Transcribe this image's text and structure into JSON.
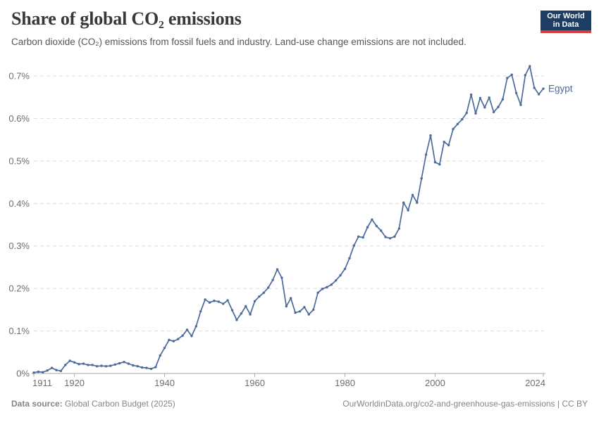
{
  "header": {
    "title": "Share of global CO₂ emissions",
    "subtitle": "Carbon dioxide (CO₂) emissions from fossil fuels and industry. Land-use change emissions are not included."
  },
  "logo": {
    "line1": "Our World",
    "line2": "in Data",
    "bg_color": "#1d3d63",
    "accent_color": "#d73c3c"
  },
  "footer": {
    "source_label": "Data source:",
    "source_value": " Global Carbon Budget (2025)",
    "citation": "OurWorldinData.org/co2-and-greenhouse-gas-emissions | CC BY"
  },
  "chart_data": {
    "type": "line",
    "title": "Share of global CO₂ emissions",
    "entity_label": "Egypt",
    "unit": "%",
    "line_color": "#4c6a9c",
    "grid": "horizontal-dashed",
    "legend": "inline-end-label",
    "ylim": [
      0,
      0.75
    ],
    "yticks": [
      0,
      0.1,
      0.2,
      0.3,
      0.4,
      0.5,
      0.6,
      0.7
    ],
    "ytick_labels": [
      "0%",
      "0.1%",
      "0.2%",
      "0.3%",
      "0.4%",
      "0.5%",
      "0.6%",
      "0.7%"
    ],
    "xticks": [
      1911,
      1920,
      1940,
      1960,
      1980,
      2000,
      2024
    ],
    "x_start": 1911,
    "x_end": 2024,
    "x_step": 1,
    "values": [
      0.002,
      0.004,
      0.003,
      0.007,
      0.013,
      0.008,
      0.006,
      0.02,
      0.03,
      0.026,
      0.022,
      0.023,
      0.02,
      0.02,
      0.017,
      0.018,
      0.017,
      0.018,
      0.021,
      0.024,
      0.027,
      0.023,
      0.019,
      0.017,
      0.014,
      0.013,
      0.011,
      0.015,
      0.042,
      0.06,
      0.079,
      0.076,
      0.081,
      0.089,
      0.103,
      0.088,
      0.111,
      0.146,
      0.174,
      0.167,
      0.171,
      0.169,
      0.164,
      0.172,
      0.149,
      0.126,
      0.141,
      0.158,
      0.139,
      0.17,
      0.181,
      0.19,
      0.202,
      0.22,
      0.245,
      0.225,
      0.158,
      0.177,
      0.143,
      0.146,
      0.156,
      0.139,
      0.15,
      0.19,
      0.199,
      0.203,
      0.209,
      0.219,
      0.231,
      0.246,
      0.271,
      0.301,
      0.322,
      0.32,
      0.344,
      0.362,
      0.347,
      0.336,
      0.321,
      0.318,
      0.322,
      0.341,
      0.402,
      0.384,
      0.42,
      0.402,
      0.459,
      0.515,
      0.56,
      0.497,
      0.492,
      0.545,
      0.537,
      0.575,
      0.587,
      0.598,
      0.613,
      0.656,
      0.612,
      0.648,
      0.626,
      0.649,
      0.615,
      0.627,
      0.645,
      0.695,
      0.703,
      0.66,
      0.632,
      0.702,
      0.723,
      0.672,
      0.657,
      0.67
    ]
  }
}
